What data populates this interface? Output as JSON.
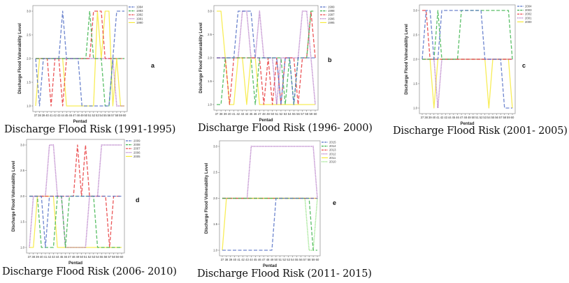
{
  "figure": {
    "captions": [
      "Discharge Flood Risk (1991-1995)",
      "Discharge Flood Risk (1996- 2000)",
      "Discharge Flood Risk (2001- 2005)",
      "Discharge Flood Risk (2006- 2010)",
      "Discharge Flood Risk (2011- 2015)"
    ]
  },
  "colors": {
    "blue": "#5470c6",
    "green": "#3cb44b",
    "red": "#e8373a",
    "purple": "#a35bb9",
    "yellow": "#f7ea3a",
    "lightgreen": "#7ddc6a"
  },
  "chart_data": [
    {
      "type": "line",
      "panel": "a",
      "title": "Discharge Flood Risk (1991-1995)",
      "xlabel": "Pentad",
      "ylabel": "Discharge Flood Vulnerability Level",
      "x": [
        37,
        38,
        39,
        40,
        41,
        42,
        43,
        44,
        45,
        46,
        47,
        48,
        49,
        50,
        51,
        52,
        53,
        54,
        55,
        56,
        57,
        58,
        59,
        60
      ],
      "yticks": [
        "1.0",
        "1.5",
        "2.0",
        "2.5",
        "3.0"
      ],
      "ylim": [
        1.0,
        3.0
      ],
      "legend_position": "top-right",
      "series": [
        {
          "name": "1994",
          "color": "blue",
          "dash": "dashed",
          "values": [
            2,
            1,
            2,
            2,
            2,
            2,
            2,
            3,
            2,
            2,
            2,
            2,
            1,
            1,
            1,
            1,
            1,
            1,
            1,
            1,
            2,
            3,
            3,
            3
          ]
        },
        {
          "name": "1993",
          "color": "green",
          "dash": "dashed",
          "values": [
            2,
            2,
            2,
            2,
            2,
            2,
            2,
            2,
            2,
            2,
            2,
            2,
            2,
            2,
            3,
            2,
            2,
            2,
            1,
            1,
            2,
            2,
            2,
            2
          ]
        },
        {
          "name": "1992",
          "color": "red",
          "dash": "dashed",
          "values": [
            2,
            2,
            2,
            2,
            1,
            2,
            2,
            1,
            2,
            2,
            2,
            2,
            2,
            2,
            2,
            3,
            3,
            3,
            2,
            2,
            2,
            2,
            2,
            2
          ]
        },
        {
          "name": "1991",
          "color": "purple",
          "dash": "dotted",
          "values": [
            2,
            2,
            2,
            2,
            2,
            2,
            2,
            2,
            2,
            2,
            2,
            2,
            2,
            2,
            2,
            2,
            2,
            2,
            2,
            2,
            2,
            1,
            1,
            1
          ]
        },
        {
          "name": "1990",
          "color": "yellow",
          "dash": "solid",
          "values": [
            1,
            2,
            2,
            2,
            2,
            2,
            2,
            2,
            1,
            1,
            1,
            1,
            1,
            1,
            1,
            1,
            3,
            2,
            3,
            3,
            1,
            2,
            1,
            1
          ]
        }
      ]
    },
    {
      "type": "line",
      "panel": "b",
      "title": "Discharge Flood Risk (1996- 2000)",
      "xlabel": "Pentad",
      "ylabel": "Discharge Flood Vulnerability Level",
      "x": [
        37,
        38,
        39,
        40,
        41,
        42,
        43,
        44,
        45,
        46,
        47,
        48,
        49,
        50,
        51,
        52,
        53,
        54,
        55,
        56,
        57,
        58,
        59,
        60
      ],
      "yticks": [
        "1.0",
        "1.5",
        "2.0",
        "2.5",
        "3.0"
      ],
      "ylim": [
        1.0,
        3.0
      ],
      "legend_position": "top-right",
      "series": [
        {
          "name": "1999",
          "color": "blue",
          "dash": "dashed",
          "values": [
            2,
            2,
            2,
            2,
            2,
            3,
            3,
            3,
            3,
            2,
            2,
            2,
            2,
            2,
            2,
            1,
            2,
            2,
            1,
            2,
            2,
            2,
            2,
            2
          ]
        },
        {
          "name": "1998",
          "color": "green",
          "dash": "dashed",
          "values": [
            1,
            1,
            2,
            2,
            2,
            2,
            2,
            2,
            2,
            1,
            2,
            2,
            2,
            2,
            2,
            2,
            1,
            2,
            1,
            2,
            2,
            2,
            3,
            3
          ]
        },
        {
          "name": "1997",
          "color": "red",
          "dash": "dashed",
          "values": [
            2,
            2,
            2,
            1,
            2,
            2,
            2,
            2,
            2,
            2,
            2,
            1,
            2,
            1,
            2,
            1,
            2,
            2,
            2,
            1,
            2,
            2,
            3,
            2
          ]
        },
        {
          "name": "1996",
          "color": "purple",
          "dash": "dotted",
          "values": [
            2,
            2,
            2,
            2,
            2,
            2,
            3,
            3,
            2,
            2,
            3,
            2,
            2,
            2,
            1,
            2,
            2,
            2,
            2,
            2,
            3,
            3,
            2,
            1
          ]
        },
        {
          "name": "1995",
          "color": "yellow",
          "dash": "solid",
          "values": [
            3,
            3,
            2,
            1,
            1,
            2,
            2,
            1,
            2,
            2,
            1,
            1,
            1,
            1,
            1,
            1,
            1,
            1,
            1,
            1,
            1,
            1,
            1,
            1
          ]
        }
      ]
    },
    {
      "type": "line",
      "panel": "c",
      "title": "Discharge Flood Risk (2001- 2005)",
      "xlabel": "Pentad",
      "ylabel": "Discharge Flood Vulnerability Level",
      "x": [
        37,
        38,
        39,
        40,
        41,
        42,
        43,
        44,
        45,
        46,
        47,
        48,
        49,
        50,
        51,
        52,
        53,
        54,
        55,
        56,
        57,
        58,
        59,
        60
      ],
      "yticks": [
        "1.0",
        "1.5",
        "2.0",
        "2.5",
        "3.0"
      ],
      "ylim": [
        1.0,
        3.0
      ],
      "legend_position": "top-right",
      "series": [
        {
          "name": "2004",
          "color": "blue",
          "dash": "dashed",
          "values": [
            2,
            3,
            3,
            2,
            2,
            3,
            3,
            3,
            3,
            3,
            3,
            3,
            3,
            3,
            3,
            3,
            2,
            2,
            2,
            2,
            2,
            1,
            1,
            1
          ]
        },
        {
          "name": "2003",
          "color": "green",
          "dash": "dashed",
          "values": [
            2,
            2,
            2,
            2,
            3,
            2,
            2,
            2,
            2,
            2,
            3,
            3,
            3,
            3,
            3,
            3,
            3,
            3,
            3,
            3,
            3,
            3,
            3,
            2
          ]
        },
        {
          "name": "2002",
          "color": "red",
          "dash": "dashed",
          "values": [
            3,
            3,
            2,
            2,
            2,
            2,
            2,
            2,
            2,
            2,
            2,
            2,
            2,
            2,
            2,
            2,
            2,
            2,
            2,
            2,
            2,
            2,
            2,
            2
          ]
        },
        {
          "name": "2001",
          "color": "purple",
          "dash": "dotted",
          "values": [
            2,
            2,
            2,
            2,
            1,
            2,
            2,
            2,
            2,
            2,
            2,
            2,
            2,
            2,
            2,
            2,
            2,
            2,
            2,
            2,
            2,
            2,
            2,
            2
          ]
        },
        {
          "name": "2000",
          "color": "yellow",
          "dash": "solid",
          "values": [
            2,
            2,
            2,
            1,
            2,
            2,
            2,
            2,
            2,
            2,
            2,
            2,
            2,
            2,
            2,
            2,
            2,
            1,
            2,
            2,
            2,
            2,
            2,
            1
          ]
        }
      ]
    },
    {
      "type": "line",
      "panel": "d",
      "title": "Discharge Flood Risk (2006- 2010)",
      "xlabel": "Pentad",
      "ylabel": "Discharge Flood Vulnerability Level",
      "x": [
        37,
        38,
        39,
        40,
        41,
        42,
        43,
        44,
        45,
        46,
        47,
        48,
        49,
        50,
        51,
        52,
        53,
        54,
        55,
        56,
        57,
        58,
        59,
        60
      ],
      "yticks": [
        "1.0",
        "1.5",
        "2.0",
        "2.5",
        "3.0"
      ],
      "ylim": [
        1.0,
        3.0
      ],
      "legend_position": "top-right",
      "series": [
        {
          "name": "2009",
          "color": "blue",
          "dash": "dashed",
          "values": [
            2,
            2,
            2,
            2,
            1,
            2,
            2,
            2,
            2,
            2,
            2,
            2,
            2,
            2,
            2,
            2,
            2,
            2,
            2,
            2,
            2,
            2,
            2,
            2
          ]
        },
        {
          "name": "2008",
          "color": "green",
          "dash": "dashed",
          "values": [
            2,
            2,
            2,
            1,
            1,
            1,
            1,
            2,
            2,
            1,
            2,
            2,
            2,
            2,
            2,
            2,
            2,
            1,
            1,
            1,
            1,
            1,
            1,
            1
          ]
        },
        {
          "name": "2007",
          "color": "red",
          "dash": "dashed",
          "values": [
            2,
            2,
            2,
            2,
            2,
            2,
            2,
            2,
            2,
            2,
            2,
            2,
            3,
            2,
            3,
            2,
            2,
            2,
            2,
            2,
            1,
            2,
            2,
            2
          ]
        },
        {
          "name": "2006",
          "color": "purple",
          "dash": "dotted",
          "values": [
            1,
            2,
            2,
            2,
            2,
            3,
            3,
            2,
            2,
            1,
            1,
            1,
            1,
            1,
            1,
            2,
            2,
            2,
            3,
            3,
            3,
            3,
            3,
            3
          ]
        },
        {
          "name": "2005",
          "color": "yellow",
          "dash": "solid",
          "values": [
            1,
            1,
            2,
            2,
            2,
            2,
            2,
            1,
            1,
            1,
            1,
            1,
            1,
            1,
            1,
            1,
            1,
            1,
            1,
            1,
            1,
            1,
            1,
            1
          ]
        }
      ]
    },
    {
      "type": "line",
      "panel": "e",
      "title": "Discharge Flood Risk (2011- 2015)",
      "xlabel": "Pentad",
      "ylabel": "Discharge Flood Vulnerability Level",
      "x": [
        37,
        38,
        39,
        40,
        41,
        42,
        43,
        44,
        45,
        46,
        47,
        48,
        49,
        50,
        51,
        52,
        53,
        54,
        55,
        56,
        57,
        58,
        59,
        60
      ],
      "yticks": [
        "1.0",
        "1.5",
        "2.0",
        "2.5",
        "3.0"
      ],
      "ylim": [
        1.0,
        3.0
      ],
      "legend_position": "top-right",
      "series": [
        {
          "name": "2015",
          "color": "blue",
          "dash": "dashed",
          "values": [
            1,
            1,
            1,
            1,
            1,
            1,
            1,
            1,
            1,
            1,
            1,
            1,
            1,
            2,
            2,
            2,
            2,
            2,
            2,
            2,
            2,
            2,
            2,
            2
          ]
        },
        {
          "name": "2014",
          "color": "green",
          "dash": "dashed",
          "values": [
            2,
            2,
            2,
            2,
            2,
            2,
            2,
            2,
            2,
            2,
            2,
            2,
            2,
            2,
            2,
            2,
            2,
            2,
            2,
            2,
            2,
            2,
            1,
            1
          ]
        },
        {
          "name": "2013",
          "color": "red",
          "dash": "dashdot",
          "values": [
            2,
            2,
            2,
            2,
            2,
            2,
            2,
            2,
            2,
            2,
            2,
            2,
            2,
            2,
            2,
            2,
            2,
            2,
            2,
            2,
            2,
            2,
            2,
            2
          ]
        },
        {
          "name": "2012",
          "color": "purple",
          "dash": "dotted",
          "values": [
            2,
            2,
            2,
            2,
            2,
            2,
            2,
            3,
            3,
            3,
            3,
            3,
            3,
            3,
            3,
            3,
            3,
            3,
            3,
            3,
            3,
            3,
            3,
            2
          ]
        },
        {
          "name": "2011",
          "color": "yellow",
          "dash": "solid",
          "values": [
            1,
            2,
            2,
            2,
            2,
            2,
            2,
            2,
            2,
            2,
            2,
            2,
            2,
            2,
            2,
            2,
            2,
            2,
            2,
            2,
            2,
            2,
            2,
            2
          ]
        },
        {
          "name": "2010",
          "color": "lightgreen",
          "dash": "dotted",
          "values": [
            2,
            2,
            2,
            2,
            2,
            2,
            2,
            2,
            2,
            2,
            2,
            2,
            2,
            2,
            2,
            2,
            2,
            2,
            2,
            2,
            2,
            1,
            1,
            2
          ]
        }
      ]
    }
  ]
}
